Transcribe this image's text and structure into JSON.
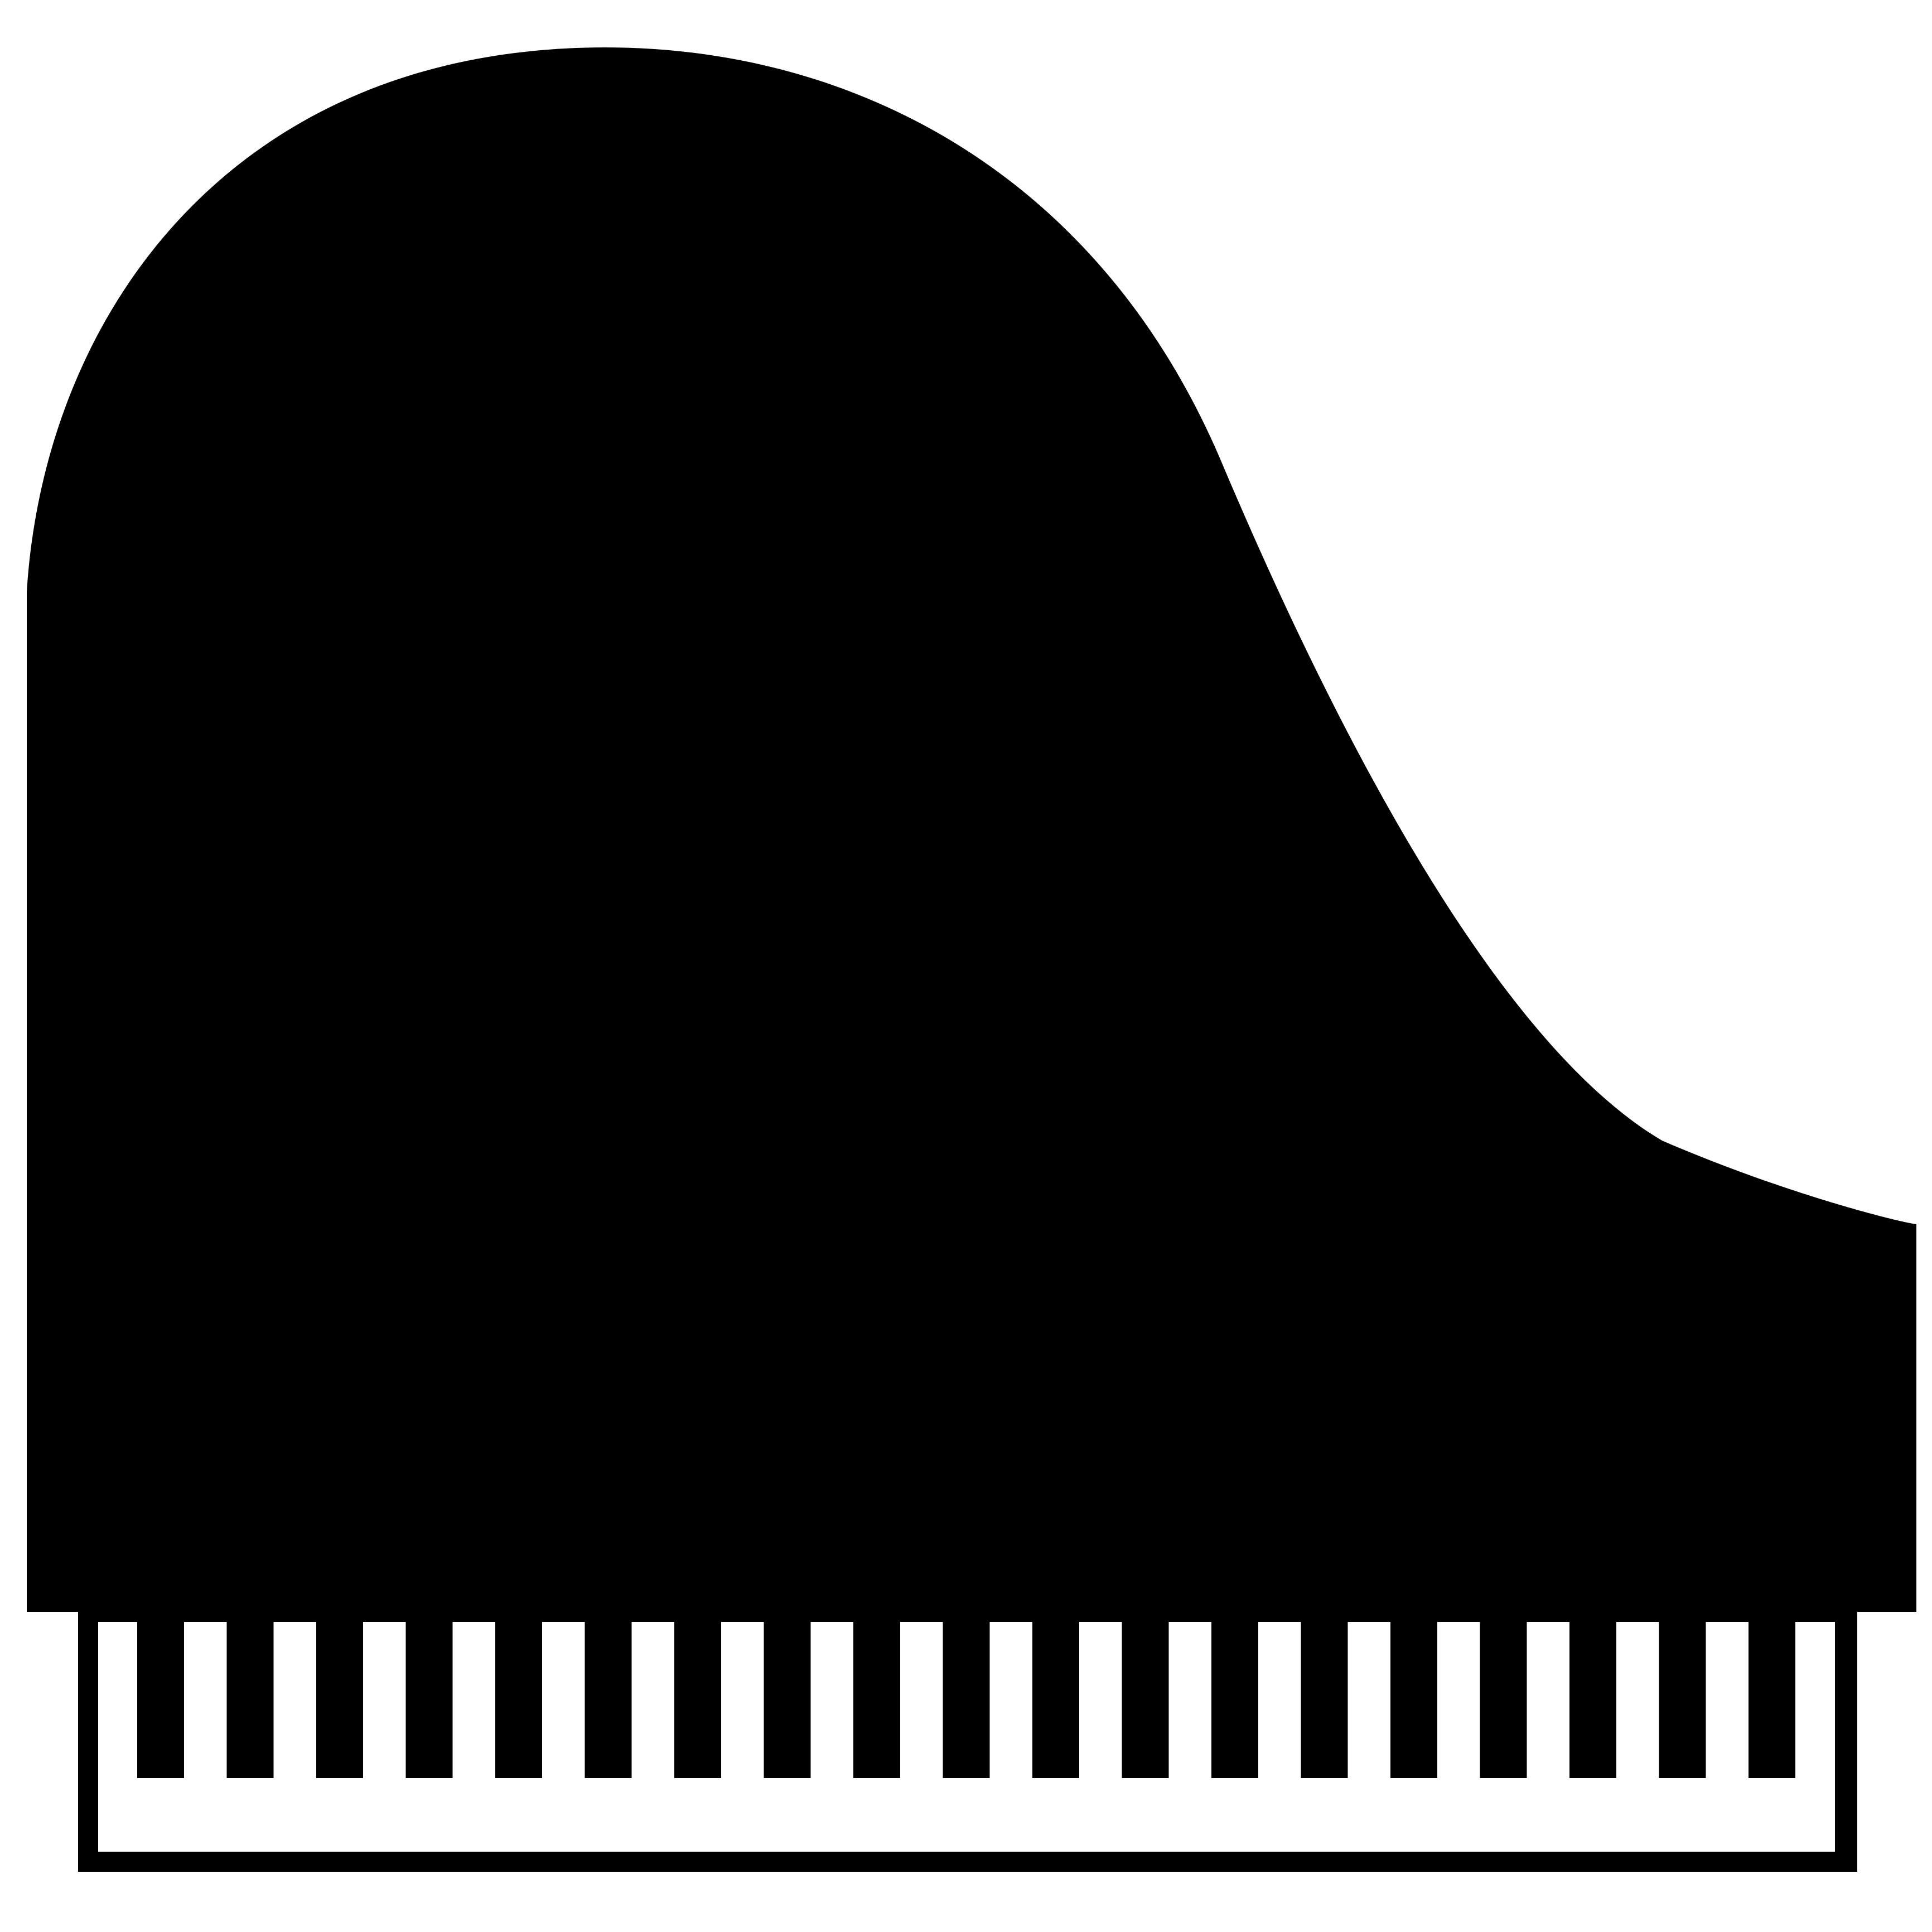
{
  "picture": {
    "subject_icon": "grand-piano-icon",
    "colors": {
      "background": "#ffffff",
      "body": "#000000",
      "keyboard_background": "#ffffff",
      "black_keys": "#000000"
    },
    "keyboard": {
      "black_key_count": 19
    }
  }
}
